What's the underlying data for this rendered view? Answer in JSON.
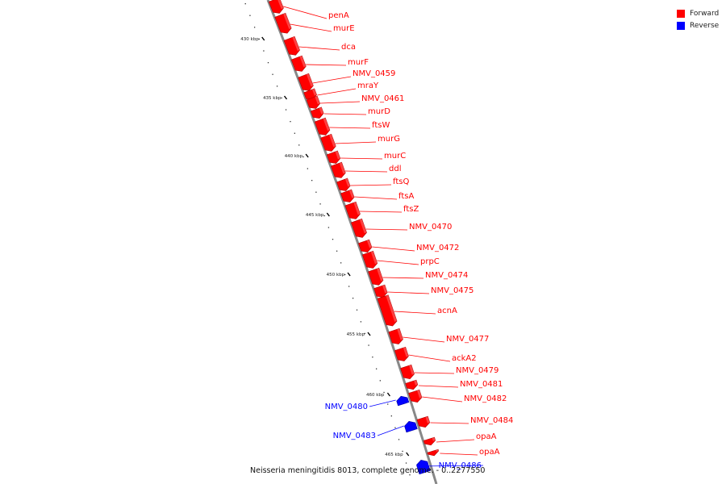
{
  "caption": "Neisseria meningitidis 8013, complete genome. - 0..2277550",
  "legend": [
    {
      "label": "Forward",
      "color": "#ff0000"
    },
    {
      "label": "Reverse",
      "color": "#0000ff"
    }
  ],
  "colors": {
    "forward": "#ff0000",
    "forward_edge": "#b00000",
    "reverse": "#0000ff",
    "reverse_edge": "#0000a0",
    "backbone": "#888888",
    "tick": "#000000"
  },
  "scale": {
    "major_ticks": [
      {
        "kbp": 430,
        "label": "430 kbp"
      },
      {
        "kbp": 435,
        "label": "435 kbp"
      },
      {
        "kbp": 440,
        "label": "440 kbp"
      },
      {
        "kbp": 445,
        "label": "445 kbp"
      },
      {
        "kbp": 450,
        "label": "450 kbp"
      },
      {
        "kbp": 455,
        "label": "455 kbp"
      },
      {
        "kbp": 460,
        "label": "460 kbp"
      },
      {
        "kbp": 465,
        "label": "465 kbp"
      }
    ]
  },
  "genes": [
    {
      "name": "penA",
      "strand": "forward"
    },
    {
      "name": "murE",
      "strand": "forward"
    },
    {
      "name": "dca",
      "strand": "forward"
    },
    {
      "name": "murF",
      "strand": "forward"
    },
    {
      "name": "NMV_0459",
      "strand": "forward"
    },
    {
      "name": "mraY",
      "strand": "forward"
    },
    {
      "name": "NMV_0461",
      "strand": "forward"
    },
    {
      "name": "murD",
      "strand": "forward"
    },
    {
      "name": "ftsW",
      "strand": "forward"
    },
    {
      "name": "murG",
      "strand": "forward"
    },
    {
      "name": "murC",
      "strand": "forward"
    },
    {
      "name": "ddl",
      "strand": "forward"
    },
    {
      "name": "ftsQ",
      "strand": "forward"
    },
    {
      "name": "ftsA",
      "strand": "forward"
    },
    {
      "name": "ftsZ",
      "strand": "forward"
    },
    {
      "name": "NMV_0470",
      "strand": "forward"
    },
    {
      "name": "NMV_0472",
      "strand": "forward"
    },
    {
      "name": "prpC",
      "strand": "forward"
    },
    {
      "name": "NMV_0474",
      "strand": "forward"
    },
    {
      "name": "NMV_0475",
      "strand": "forward"
    },
    {
      "name": "acnA",
      "strand": "forward"
    },
    {
      "name": "NMV_0477",
      "strand": "forward"
    },
    {
      "name": "ackA2",
      "strand": "forward"
    },
    {
      "name": "NMV_0479",
      "strand": "forward"
    },
    {
      "name": "NMV_0481",
      "strand": "forward"
    },
    {
      "name": "NMV_0482",
      "strand": "forward"
    },
    {
      "name": "NMV_0484",
      "strand": "forward"
    },
    {
      "name": "opaA",
      "strand": "forward"
    },
    {
      "name": "opaA",
      "strand": "forward"
    },
    {
      "name": "NMV_0486",
      "strand": "reverse"
    },
    {
      "name": "NMV_0480",
      "strand": "reverse"
    },
    {
      "name": "NMV_0483",
      "strand": "reverse"
    }
  ]
}
